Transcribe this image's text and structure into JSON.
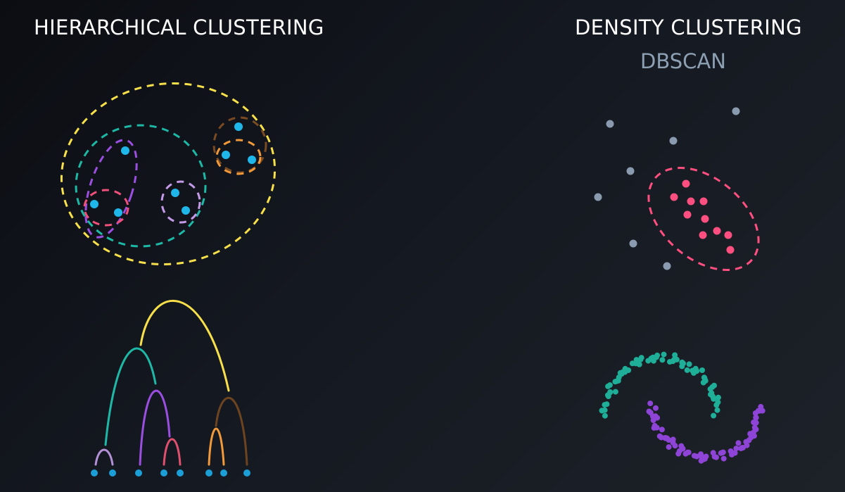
{
  "hierarchical": {
    "title": "HIERARCHICAL CLUSTERING"
  },
  "density": {
    "title": "DENSITY CLUSTERING",
    "subtitle": "DBSCAN"
  },
  "colors": {
    "point_blue": "#1fb7ea",
    "yellow": "#f7e04a",
    "teal": "#1db8a6",
    "purple": "#9b4fe0",
    "pink": "#f0507a",
    "lavender": "#c49ae8",
    "orange": "#f29a3a",
    "brown": "#7a4a22",
    "noise_gray": "#8a9bb0",
    "dbscan_pink": "#ff4f80",
    "moon_teal": "#1fae98",
    "moon_purple": "#8e44d6"
  }
}
